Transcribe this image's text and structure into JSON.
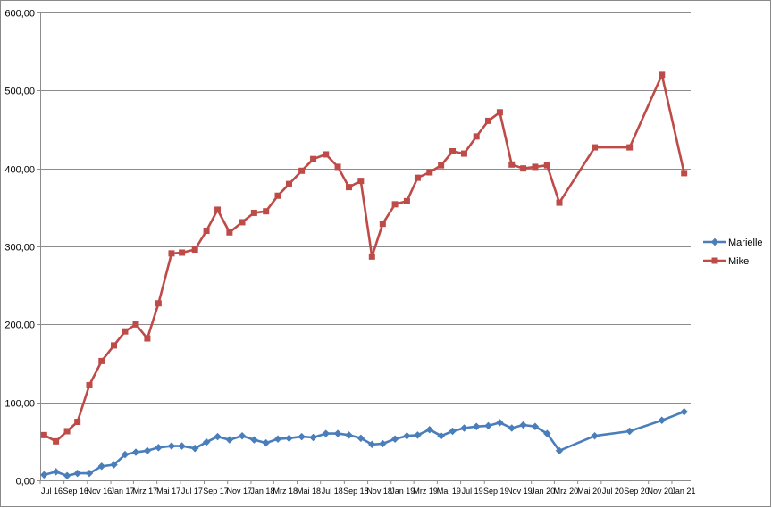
{
  "chart_data": {
    "type": "line",
    "title": "",
    "xlabel": "",
    "ylabel": "",
    "ylim": [
      0,
      600
    ],
    "y_ticks": [
      "0,00",
      "100,00",
      "200,00",
      "300,00",
      "400,00",
      "500,00",
      "600,00"
    ],
    "x_tick_labels": [
      "Jul 16",
      "Sep 16",
      "Nov 16",
      "Jan 17",
      "Mrz 17",
      "Mai 17",
      "Jul 17",
      "Sep 17",
      "Nov 17",
      "Jan 18",
      "Mrz 18",
      "Mai 18",
      "Jul 18",
      "Sep 18",
      "Nov 18",
      "Jan 19",
      "Mrz 19",
      "Mai 19",
      "Jul 19",
      "Sep 19",
      "Nov 19",
      "Jan 20",
      "Mrz 20",
      "Mai 20",
      "Jul 20",
      "Sep 20",
      "Nov 20",
      "Jan 21"
    ],
    "x_range": [
      "2016-07-01",
      "2021-02-19"
    ],
    "grid": true,
    "legend": "right",
    "colors": {
      "Marielle": "#4a7ebb",
      "Mike": "#be4b48"
    },
    "series": [
      {
        "name": "Marielle",
        "marker": "diamond",
        "points": [
          [
            "2016-07-11",
            7
          ],
          [
            "2016-08-11",
            11
          ],
          [
            "2016-09-09",
            6
          ],
          [
            "2016-10-06",
            9
          ],
          [
            "2016-11-06",
            9
          ],
          [
            "2016-12-08",
            18
          ],
          [
            "2017-01-09",
            20
          ],
          [
            "2017-02-07",
            33
          ],
          [
            "2017-03-07",
            36
          ],
          [
            "2017-04-06",
            38
          ],
          [
            "2017-05-05",
            42
          ],
          [
            "2017-06-08",
            44
          ],
          [
            "2017-07-05",
            44
          ],
          [
            "2017-08-08",
            41
          ],
          [
            "2017-09-07",
            49
          ],
          [
            "2017-10-06",
            56
          ],
          [
            "2017-11-06",
            52
          ],
          [
            "2017-12-09",
            57
          ],
          [
            "2018-01-09",
            52
          ],
          [
            "2018-02-09",
            48
          ],
          [
            "2018-03-12",
            53
          ],
          [
            "2018-04-10",
            54
          ],
          [
            "2018-05-13",
            56
          ],
          [
            "2018-06-12",
            55
          ],
          [
            "2018-07-15",
            60
          ],
          [
            "2018-08-15",
            60
          ],
          [
            "2018-09-13",
            58
          ],
          [
            "2018-10-14",
            54
          ],
          [
            "2018-11-12",
            46
          ],
          [
            "2018-12-10",
            47
          ],
          [
            "2019-01-11",
            53
          ],
          [
            "2019-02-11",
            57
          ],
          [
            "2019-03-11",
            58
          ],
          [
            "2019-04-11",
            65
          ],
          [
            "2019-05-11",
            57
          ],
          [
            "2019-06-10",
            63
          ],
          [
            "2019-07-10",
            67
          ],
          [
            "2019-08-11",
            69
          ],
          [
            "2019-09-11",
            70
          ],
          [
            "2019-10-11",
            74
          ],
          [
            "2019-11-11",
            67
          ],
          [
            "2019-12-11",
            71
          ],
          [
            "2020-01-11",
            69
          ],
          [
            "2020-02-11",
            60
          ],
          [
            "2020-03-14",
            38
          ],
          [
            "2020-06-14",
            57
          ],
          [
            "2020-09-13",
            63
          ],
          [
            "2020-12-06",
            77
          ],
          [
            "2021-02-02",
            88
          ]
        ]
      },
      {
        "name": "Mike",
        "marker": "square",
        "points": [
          [
            "2016-07-11",
            58
          ],
          [
            "2016-08-11",
            50
          ],
          [
            "2016-09-09",
            63
          ],
          [
            "2016-10-06",
            75
          ],
          [
            "2016-11-06",
            122
          ],
          [
            "2016-12-08",
            153
          ],
          [
            "2017-01-09",
            173
          ],
          [
            "2017-02-07",
            191
          ],
          [
            "2017-03-07",
            200
          ],
          [
            "2017-04-06",
            182
          ],
          [
            "2017-05-05",
            227
          ],
          [
            "2017-06-08",
            291
          ],
          [
            "2017-07-05",
            292
          ],
          [
            "2017-08-08",
            296
          ],
          [
            "2017-09-07",
            320
          ],
          [
            "2017-10-06",
            347
          ],
          [
            "2017-11-06",
            318
          ],
          [
            "2017-12-09",
            331
          ],
          [
            "2018-01-09",
            343
          ],
          [
            "2018-02-09",
            345
          ],
          [
            "2018-03-12",
            365
          ],
          [
            "2018-04-10",
            380
          ],
          [
            "2018-05-13",
            397
          ],
          [
            "2018-06-12",
            412
          ],
          [
            "2018-07-15",
            418
          ],
          [
            "2018-08-15",
            402
          ],
          [
            "2018-09-13",
            376
          ],
          [
            "2018-10-14",
            384
          ],
          [
            "2018-11-12",
            287
          ],
          [
            "2018-12-10",
            329
          ],
          [
            "2019-01-11",
            354
          ],
          [
            "2019-02-11",
            358
          ],
          [
            "2019-03-11",
            388
          ],
          [
            "2019-04-11",
            395
          ],
          [
            "2019-05-11",
            404
          ],
          [
            "2019-06-10",
            422
          ],
          [
            "2019-07-10",
            419
          ],
          [
            "2019-08-11",
            441
          ],
          [
            "2019-09-11",
            461
          ],
          [
            "2019-10-11",
            472
          ],
          [
            "2019-11-11",
            405
          ],
          [
            "2019-12-11",
            400
          ],
          [
            "2020-01-11",
            402
          ],
          [
            "2020-02-11",
            404
          ],
          [
            "2020-03-14",
            356
          ],
          [
            "2020-06-14",
            427
          ],
          [
            "2020-09-13",
            427
          ],
          [
            "2020-12-06",
            520
          ],
          [
            "2021-02-02",
            394
          ]
        ]
      }
    ]
  }
}
